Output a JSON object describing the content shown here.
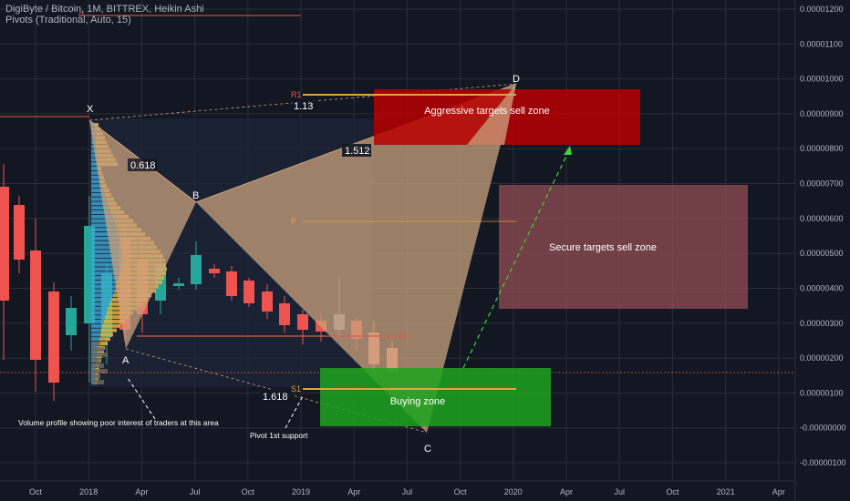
{
  "header": {
    "title": "DigiByte / Bitcoin, 1M, BITTREX, Heikin Ashi",
    "indicator": "Pivots (Traditional, Auto, 15)"
  },
  "chart_data": {
    "type": "candlestick",
    "y_axis_labels": [
      "0.00001200",
      "0.00001100",
      "0.00001000",
      "0.00000900",
      "0.00000800",
      "0.00000700",
      "0.00000600",
      "0.00000500",
      "0.00000400",
      "0.00000300",
      "0.00000200",
      "0.00000100",
      "-0.00000000",
      "-0.00000100"
    ],
    "y_values": [
      1.2e-05,
      1.1e-05,
      1e-05,
      9e-06,
      8e-06,
      7e-06,
      6e-06,
      5e-06,
      4e-06,
      3e-06,
      2e-06,
      1e-06,
      0,
      -1e-06
    ],
    "x_axis_labels": [
      "Oct",
      "2018",
      "Apr",
      "Jul",
      "Oct",
      "2019",
      "Apr",
      "Jul",
      "Oct",
      "2020",
      "Apr",
      "Jul",
      "Oct",
      "2021",
      "Apr"
    ],
    "pattern_points": [
      "X",
      "A",
      "B",
      "C",
      "D"
    ],
    "ratios": [
      "0.618",
      "1.13",
      "1.512",
      "1.618"
    ],
    "pivots": [
      "P",
      "R1",
      "P",
      "S1"
    ],
    "zones": [
      "Aggressive targets sell zone",
      "Secure targets sell zone",
      "Buying zone"
    ],
    "annotations": [
      "Volume profile showing poor interest of traders at this area",
      "Pivot 1st support"
    ],
    "colors": {
      "background": "#131722",
      "bull": "#26a69a",
      "bear": "#ef5350",
      "aggressive_zone": "#b80000",
      "secure_zone": "#8a4a4f",
      "buying_zone": "#1fa31f",
      "pattern_fill": "#c9a27e",
      "volume_profile_blue": "#3fa7d6",
      "volume_profile_yellow": "#e3b341"
    }
  }
}
